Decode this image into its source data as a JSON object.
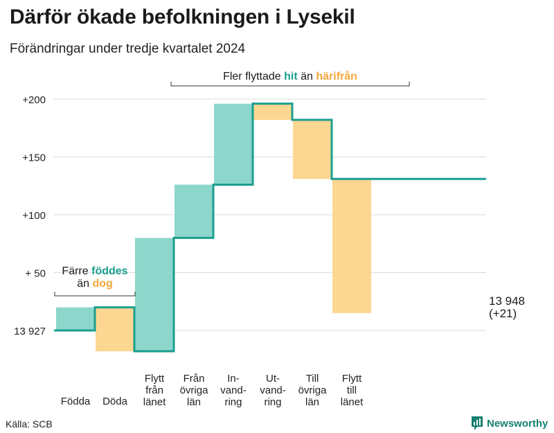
{
  "header": {
    "title": "Därför ökade befolkningen i Lysekil",
    "subtitle": "Förändringar under tredje kvartalet 2024"
  },
  "annotations": {
    "migration": {
      "prefix": "Fler flyttade",
      "hit": "hit",
      "middle": "än",
      "harifran": "härifrån"
    },
    "natural": {
      "prefix": "Färre",
      "fodda": "föddes",
      "middle": "än",
      "dog": "dog"
    }
  },
  "end_label": {
    "value": "13 948",
    "change": "(+21)"
  },
  "footer": {
    "source": "Källa: SCB",
    "brand": "Newsworthy"
  },
  "colors": {
    "increase": "#8dd6cb",
    "decrease": "#fbd791",
    "line": "#1a9e8f",
    "grid": "#d9d9d9"
  },
  "chart_data": {
    "type": "waterfall",
    "categories": [
      [
        "Födda"
      ],
      [
        "Döda"
      ],
      [
        "Flytt",
        "från",
        "länet"
      ],
      [
        "Från",
        "övriga",
        "län"
      ],
      [
        "In-",
        "vand-",
        "ring"
      ],
      [
        "Ut-",
        "vand-",
        "ring"
      ],
      [
        "Till",
        "övriga",
        "län"
      ],
      [
        "Flytt",
        "till",
        "länet"
      ]
    ],
    "start": 0,
    "changes": [
      20,
      -38,
      98,
      46,
      70,
      -14,
      -51,
      -116
    ],
    "end": 21,
    "y_ticks": [
      {
        "value": 0,
        "label": "13 927"
      },
      {
        "value": 50,
        "label": "+ 50"
      },
      {
        "value": 100,
        "label": "+100"
      },
      {
        "value": 150,
        "label": "+150"
      },
      {
        "value": 200,
        "label": "+200"
      }
    ],
    "ylim": [
      -18,
      208
    ],
    "grid": true
  }
}
